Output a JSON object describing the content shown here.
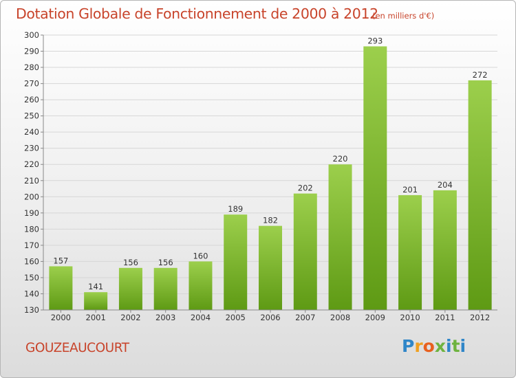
{
  "title": "Dotation Globale de Fonctionnement de 2000 à 2012",
  "unit_note": "(en milliers d'€)",
  "commune": "GOUZEAUCOURT",
  "logo": {
    "letters": [
      "P",
      "r",
      "o",
      "x",
      "i",
      "t",
      "i"
    ],
    "colors": [
      "#2f86c8",
      "#f0a020",
      "#e8601e",
      "#6eb33f",
      "#2f86c8",
      "#6eb33f",
      "#2f86c8"
    ]
  },
  "chart_data": {
    "type": "bar",
    "categories": [
      "2000",
      "2001",
      "2002",
      "2003",
      "2004",
      "2005",
      "2006",
      "2007",
      "2008",
      "2009",
      "2010",
      "2011",
      "2012"
    ],
    "values": [
      157,
      141,
      156,
      156,
      160,
      189,
      182,
      202,
      220,
      293,
      201,
      204,
      272
    ],
    "ylim": [
      130,
      300
    ],
    "yticks": [
      130,
      140,
      150,
      160,
      170,
      180,
      190,
      200,
      210,
      220,
      230,
      240,
      250,
      260,
      270,
      280,
      290,
      300
    ],
    "grid": true,
    "bar_color_top": "#9ccf4c",
    "bar_color_bottom": "#5e9a14"
  }
}
